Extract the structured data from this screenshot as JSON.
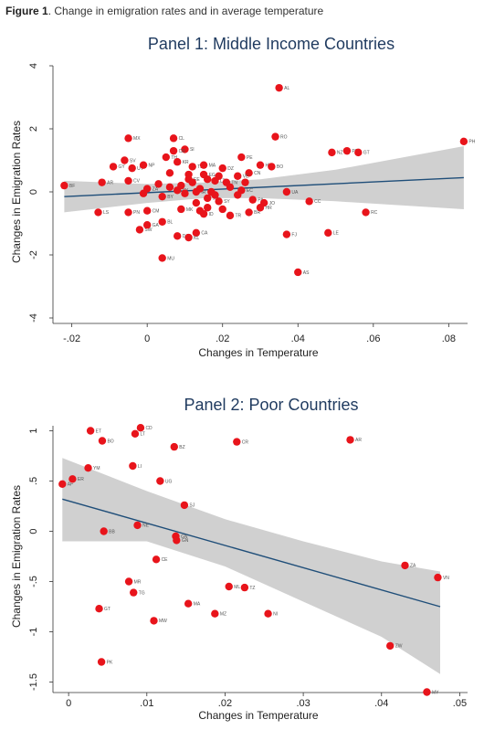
{
  "caption": {
    "prefix": "Figure 1",
    "text": ". Change in emigration rates and in average temperature"
  },
  "chart_data": [
    {
      "type": "scatter",
      "title": "Panel 1: Middle Income Countries",
      "xlabel": "Changes in Temperature",
      "ylabel": "Changes in Emigration Rates",
      "xlim": [
        -0.025,
        0.085
      ],
      "ylim": [
        -4,
        4
      ],
      "xticks": [
        -0.02,
        0,
        0.02,
        0.04,
        0.06,
        0.08
      ],
      "xtick_labels": [
        "-.02",
        "0",
        ".02",
        ".04",
        ".06",
        ".08"
      ],
      "yticks": [
        -4,
        -2,
        0,
        2,
        4
      ],
      "ytick_labels": [
        "-4",
        "-2",
        "0",
        "2",
        "4"
      ],
      "marker_color": "#e8141b",
      "fit_color": "#1f4e79",
      "ci_color": "#c8c8c8",
      "fit_line": {
        "x": [
          -0.022,
          0.084
        ],
        "y": [
          -0.15,
          0.45
        ]
      },
      "ci_band": {
        "x": [
          -0.022,
          0.0,
          0.015,
          0.03,
          0.05,
          0.084
        ],
        "lower": [
          -0.65,
          -0.35,
          -0.2,
          -0.2,
          -0.3,
          -0.55
        ],
        "upper": [
          0.35,
          0.25,
          0.3,
          0.4,
          0.7,
          1.45
        ]
      },
      "points": [
        {
          "x": 0.035,
          "y": 3.3,
          "label": "AL"
        },
        {
          "x": -0.022,
          "y": 0.2,
          "label": "BF"
        },
        {
          "x": -0.005,
          "y": 1.7,
          "label": "MX"
        },
        {
          "x": 0.007,
          "y": 1.7,
          "label": "CL"
        },
        {
          "x": 0.01,
          "y": 1.35,
          "label": "SI"
        },
        {
          "x": 0.007,
          "y": 1.3,
          "label": "CR"
        },
        {
          "x": 0.005,
          "y": 1.1,
          "label": "TH"
        },
        {
          "x": 0.034,
          "y": 1.75,
          "label": "RO"
        },
        {
          "x": 0.025,
          "y": 1.1,
          "label": "PE"
        },
        {
          "x": 0.049,
          "y": 1.25,
          "label": "NZ"
        },
        {
          "x": 0.053,
          "y": 1.3,
          "label": "PT"
        },
        {
          "x": 0.056,
          "y": 1.25,
          "label": "GT"
        },
        {
          "x": 0.084,
          "y": 1.6,
          "label": "PH"
        },
        {
          "x": -0.006,
          "y": 1.0,
          "label": "SV"
        },
        {
          "x": -0.009,
          "y": 0.8,
          "label": "GY"
        },
        {
          "x": -0.004,
          "y": 0.75,
          "label": "UY"
        },
        {
          "x": -0.001,
          "y": 0.85,
          "label": "NP"
        },
        {
          "x": 0.008,
          "y": 0.95,
          "label": "KR"
        },
        {
          "x": 0.012,
          "y": 0.8,
          "label": "TD"
        },
        {
          "x": 0.015,
          "y": 0.85,
          "label": "MA"
        },
        {
          "x": 0.02,
          "y": 0.75,
          "label": "DZ"
        },
        {
          "x": 0.03,
          "y": 0.85,
          "label": "HN"
        },
        {
          "x": 0.033,
          "y": 0.8,
          "label": "BO"
        },
        {
          "x": 0.027,
          "y": 0.6,
          "label": "CN"
        },
        {
          "x": 0.024,
          "y": 0.5,
          "label": "VE"
        },
        {
          "x": 0.015,
          "y": 0.55,
          "label": "EG"
        },
        {
          "x": 0.011,
          "y": 0.4,
          "label": "EE"
        },
        {
          "x": 0.018,
          "y": 0.35,
          "label": "LT"
        },
        {
          "x": 0.021,
          "y": 0.3,
          "label": "TN"
        },
        {
          "x": -0.012,
          "y": 0.3,
          "label": "AR"
        },
        {
          "x": -0.005,
          "y": 0.35,
          "label": "CV"
        },
        {
          "x": 0.0,
          "y": 0.1,
          "label": "ZA"
        },
        {
          "x": 0.008,
          "y": 0.05,
          "label": "PY"
        },
        {
          "x": 0.013,
          "y": 0.0,
          "label": "IR"
        },
        {
          "x": 0.025,
          "y": 0.05,
          "label": "EC"
        },
        {
          "x": 0.037,
          "y": 0.0,
          "label": "UA"
        },
        {
          "x": 0.004,
          "y": -0.15,
          "label": "BY"
        },
        {
          "x": 0.016,
          "y": -0.2,
          "label": "JM"
        },
        {
          "x": 0.019,
          "y": -0.3,
          "label": "SY"
        },
        {
          "x": 0.028,
          "y": -0.25,
          "label": "PA"
        },
        {
          "x": 0.031,
          "y": -0.35,
          "label": "JO"
        },
        {
          "x": 0.043,
          "y": -0.3,
          "label": "CC"
        },
        {
          "x": -0.013,
          "y": -0.65,
          "label": "LS"
        },
        {
          "x": -0.005,
          "y": -0.65,
          "label": "PN"
        },
        {
          "x": 0.0,
          "y": -0.6,
          "label": "CM"
        },
        {
          "x": 0.009,
          "y": -0.55,
          "label": "MK"
        },
        {
          "x": 0.015,
          "y": -0.7,
          "label": "ID"
        },
        {
          "x": 0.022,
          "y": -0.75,
          "label": "TR"
        },
        {
          "x": 0.027,
          "y": -0.65,
          "label": "BR"
        },
        {
          "x": 0.03,
          "y": -0.5,
          "label": "HR"
        },
        {
          "x": 0.058,
          "y": -0.65,
          "label": "RC"
        },
        {
          "x": 0.004,
          "y": -0.95,
          "label": "BL"
        },
        {
          "x": -0.002,
          "y": -1.2,
          "label": "SW"
        },
        {
          "x": 0.0,
          "y": -1.05,
          "label": "GA"
        },
        {
          "x": 0.013,
          "y": -1.3,
          "label": "CA"
        },
        {
          "x": 0.008,
          "y": -1.4,
          "label": "DJ"
        },
        {
          "x": 0.011,
          "y": -1.45,
          "label": "KL"
        },
        {
          "x": 0.037,
          "y": -1.35,
          "label": "FJ"
        },
        {
          "x": 0.048,
          "y": -1.3,
          "label": "LE"
        },
        {
          "x": 0.004,
          "y": -2.1,
          "label": "MU"
        },
        {
          "x": 0.04,
          "y": -2.55,
          "label": "AS"
        },
        {
          "x": -0.001,
          "y": -0.05,
          "label": ""
        },
        {
          "x": 0.003,
          "y": 0.25,
          "label": ""
        },
        {
          "x": 0.006,
          "y": 0.15,
          "label": ""
        },
        {
          "x": 0.009,
          "y": 0.2,
          "label": ""
        },
        {
          "x": 0.01,
          "y": -0.05,
          "label": ""
        },
        {
          "x": 0.012,
          "y": 0.3,
          "label": ""
        },
        {
          "x": 0.014,
          "y": 0.1,
          "label": ""
        },
        {
          "x": 0.016,
          "y": 0.4,
          "label": ""
        },
        {
          "x": 0.017,
          "y": 0.0,
          "label": ""
        },
        {
          "x": 0.018,
          "y": -0.1,
          "label": ""
        },
        {
          "x": 0.019,
          "y": 0.5,
          "label": ""
        },
        {
          "x": 0.013,
          "y": -0.35,
          "label": ""
        },
        {
          "x": 0.011,
          "y": 0.55,
          "label": ""
        },
        {
          "x": 0.006,
          "y": 0.6,
          "label": ""
        },
        {
          "x": 0.016,
          "y": -0.5,
          "label": ""
        },
        {
          "x": 0.022,
          "y": 0.15,
          "label": ""
        },
        {
          "x": 0.024,
          "y": -0.1,
          "label": ""
        },
        {
          "x": 0.026,
          "y": 0.3,
          "label": ""
        },
        {
          "x": 0.014,
          "y": -0.6,
          "label": ""
        },
        {
          "x": 0.02,
          "y": -0.55,
          "label": ""
        }
      ]
    },
    {
      "type": "scatter",
      "title": "Panel 2: Poor Countries",
      "xlabel": "Changes in Temperature",
      "ylabel": "Changes in Emigration Rates",
      "xlim": [
        -0.002,
        0.051
      ],
      "ylim": [
        -1.55,
        1.05
      ],
      "xticks": [
        0,
        0.01,
        0.02,
        0.03,
        0.04,
        0.05
      ],
      "xtick_labels": [
        "0",
        ".01",
        ".02",
        ".03",
        ".04",
        ".05"
      ],
      "yticks": [
        -1.5,
        -1,
        -0.5,
        0,
        0.5,
        1
      ],
      "ytick_labels": [
        "-1.5",
        "-1",
        "-.5",
        "0",
        ".5",
        "1"
      ],
      "marker_color": "#e8141b",
      "fit_color": "#1f4e79",
      "ci_color": "#c8c8c8",
      "fit_line": {
        "x": [
          -0.0008,
          0.0475
        ],
        "y": [
          0.32,
          -0.75
        ]
      },
      "ci_band": {
        "x": [
          -0.0008,
          0.01,
          0.02,
          0.03,
          0.04,
          0.0475
        ],
        "lower": [
          -0.1,
          -0.1,
          -0.35,
          -0.7,
          -1.05,
          -1.42
        ],
        "upper": [
          0.73,
          0.4,
          0.12,
          -0.1,
          -0.3,
          -0.4
        ]
      },
      "points": [
        {
          "x": 0.0028,
          "y": 1.0,
          "label": "ET"
        },
        {
          "x": 0.0092,
          "y": 1.03,
          "label": "CD"
        },
        {
          "x": 0.0085,
          "y": 0.97,
          "label": "LT"
        },
        {
          "x": 0.0043,
          "y": 0.9,
          "label": "BO"
        },
        {
          "x": 0.0135,
          "y": 0.84,
          "label": "BZ"
        },
        {
          "x": 0.0215,
          "y": 0.89,
          "label": "CR"
        },
        {
          "x": 0.036,
          "y": 0.91,
          "label": "AR"
        },
        {
          "x": 0.0025,
          "y": 0.63,
          "label": "YM"
        },
        {
          "x": 0.0082,
          "y": 0.65,
          "label": "LI"
        },
        {
          "x": -0.0008,
          "y": 0.47,
          "label": "AF"
        },
        {
          "x": 0.0005,
          "y": 0.52,
          "label": "ER"
        },
        {
          "x": 0.0117,
          "y": 0.5,
          "label": "UG"
        },
        {
          "x": 0.0148,
          "y": 0.26,
          "label": "SJ"
        },
        {
          "x": 0.0045,
          "y": 0.0,
          "label": "BB"
        },
        {
          "x": 0.0088,
          "y": 0.06,
          "label": "NE"
        },
        {
          "x": 0.0137,
          "y": -0.05,
          "label": "GN"
        },
        {
          "x": 0.0138,
          "y": -0.09,
          "label": "GN"
        },
        {
          "x": 0.0112,
          "y": -0.28,
          "label": "CE"
        },
        {
          "x": 0.043,
          "y": -0.34,
          "label": "ZA"
        },
        {
          "x": 0.0472,
          "y": -0.46,
          "label": "VN"
        },
        {
          "x": 0.0077,
          "y": -0.5,
          "label": "MR"
        },
        {
          "x": 0.0083,
          "y": -0.61,
          "label": "TG"
        },
        {
          "x": 0.0205,
          "y": -0.55,
          "label": "ML"
        },
        {
          "x": 0.0225,
          "y": -0.56,
          "label": "TZ"
        },
        {
          "x": 0.0153,
          "y": -0.72,
          "label": "MA"
        },
        {
          "x": 0.0039,
          "y": -0.77,
          "label": "GT"
        },
        {
          "x": 0.0187,
          "y": -0.82,
          "label": "MZ"
        },
        {
          "x": 0.0255,
          "y": -0.82,
          "label": "NI"
        },
        {
          "x": 0.0109,
          "y": -0.89,
          "label": "MW"
        },
        {
          "x": 0.0411,
          "y": -1.14,
          "label": "ZW"
        },
        {
          "x": 0.0042,
          "y": -1.3,
          "label": "PK"
        },
        {
          "x": 0.0458,
          "y": -1.6,
          "label": "MY"
        }
      ]
    }
  ]
}
